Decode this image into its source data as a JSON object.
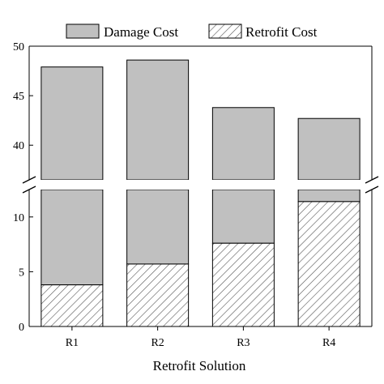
{
  "chart_data": {
    "type": "bar",
    "stacked": true,
    "broken_y_axis": true,
    "xlabel": "Retrofit Solution",
    "ylabel": "",
    "categories": [
      "R1",
      "R2",
      "R3",
      "R4"
    ],
    "series": [
      {
        "name": "Retrofit Cost",
        "values": [
          3.8,
          5.7,
          7.6,
          11.4
        ],
        "fill": "hatched"
      },
      {
        "name": "Damage Cost",
        "values": [
          44.1,
          42.9,
          36.2,
          31.3
        ],
        "fill": "#c0c0c0"
      }
    ],
    "totals": [
      47.9,
      48.6,
      43.8,
      42.7
    ],
    "ylim_lower": [
      0,
      12.5
    ],
    "ylim_upper": [
      36.5,
      50
    ],
    "yticks_lower": [
      "0",
      "5",
      "10"
    ],
    "yticks_upper": [
      "40",
      "45",
      "50"
    ],
    "legend": {
      "position": "top",
      "entries": [
        "Damage Cost",
        "Retrofit Cost"
      ]
    },
    "grid": false,
    "colors": {
      "damage": "#c0c0c0",
      "hatch": "#555555",
      "edge": "#000000"
    }
  }
}
